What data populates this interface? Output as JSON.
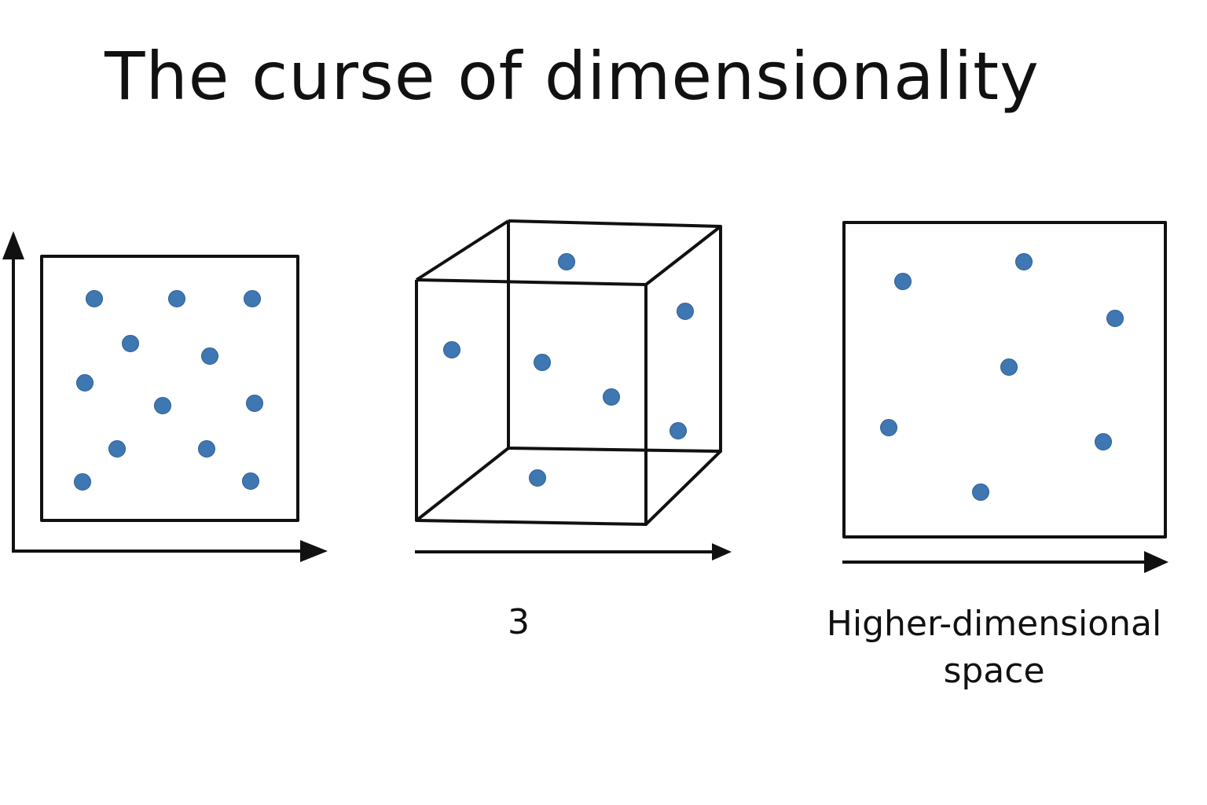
{
  "title": "The curse of dimensionality",
  "dot_color": "#3e77b1",
  "panels": [
    {
      "id": "2d",
      "label": ""
    },
    {
      "id": "3d",
      "label": "3"
    },
    {
      "id": "high",
      "label_line1": "Higher-dimensional",
      "label_line2": "space"
    }
  ]
}
